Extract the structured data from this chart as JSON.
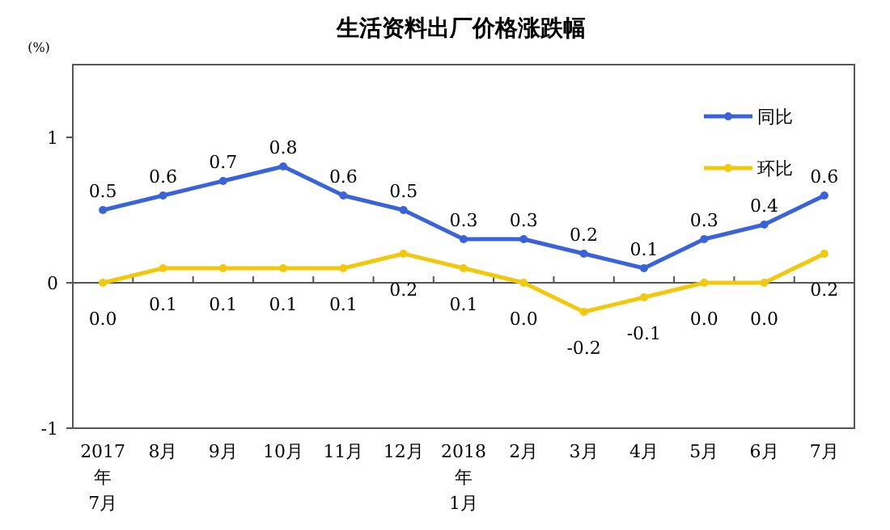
{
  "chart_data": {
    "type": "line",
    "title": "生活资料出厂价格涨跌幅",
    "ylabel": "(%)",
    "categories": [
      "2017\n年\n7月",
      "8月",
      "9月",
      "10月",
      "11月",
      "12月",
      "2018\n年\n1月",
      "2月",
      "3月",
      "4月",
      "5月",
      "6月",
      "7月"
    ],
    "series": [
      {
        "name": "同比",
        "color": "#3a63d9",
        "values": [
          0.5,
          0.6,
          0.7,
          0.8,
          0.6,
          0.5,
          0.3,
          0.3,
          0.2,
          0.1,
          0.3,
          0.4,
          0.6
        ],
        "value_labels": [
          "0.5",
          "0.6",
          "0.7",
          "0.8",
          "0.6",
          "0.5",
          "0.3",
          "0.3",
          "0.2",
          "0.1",
          "0.3",
          "0.4",
          "0.6"
        ]
      },
      {
        "name": "环比",
        "color": "#f2c80f",
        "values": [
          0.0,
          0.1,
          0.1,
          0.1,
          0.1,
          0.2,
          0.1,
          0.0,
          -0.2,
          -0.1,
          0.0,
          0.0,
          0.2
        ],
        "value_labels": [
          "0.0",
          "0.1",
          "0.1",
          "0.1",
          "0.1",
          "0.2",
          "0.1",
          "0.0",
          "-0.2",
          "-0.1",
          "0.0",
          "0.0",
          "0.2"
        ]
      }
    ],
    "ylim": [
      -1,
      1.5
    ],
    "yticks": [
      -1,
      0,
      1
    ],
    "legend": "top right",
    "marker": "circle"
  }
}
